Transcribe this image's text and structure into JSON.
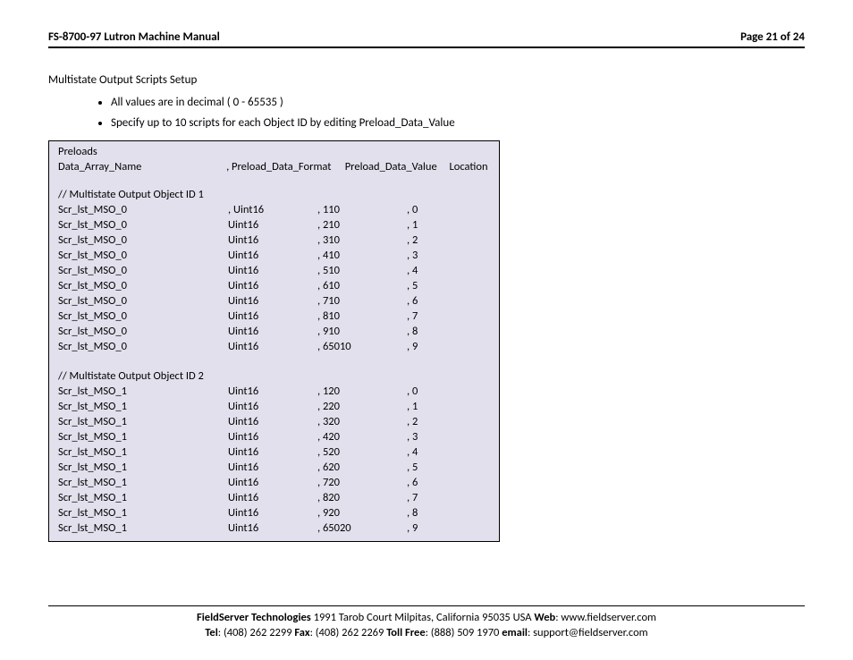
{
  "header": {
    "title": "FS-8700-97 Lutron Machine Manual",
    "page_label": "Page 21 of 24"
  },
  "section": {
    "title": "Multistate Output Scripts Setup",
    "bullets": [
      "All values are in decimal ( 0 - 65535 )",
      "Specify up to 10 scripts for each Object ID by editing Preload_Data_Value"
    ]
  },
  "preloads": {
    "box_title": "Preloads",
    "headers": {
      "c1": "Data_Array_Name",
      "c2": ", Preload_Data_Format",
      "c3": "Preload_Data_Value",
      "c4": "Location"
    },
    "groups": [
      {
        "label": "// Multistate Output Object ID 1",
        "rows": [
          {
            "name": "Scr_lst_MSO_0",
            "fmt": ", Uint16",
            "val": ", 110",
            "loc": ", 0"
          },
          {
            "name": "Scr_lst_MSO_0",
            "fmt": "Uint16",
            "val": ", 210",
            "loc": ", 1"
          },
          {
            "name": "Scr_lst_MSO_0",
            "fmt": "Uint16",
            "val": ", 310",
            "loc": ", 2"
          },
          {
            "name": "Scr_lst_MSO_0",
            "fmt": "Uint16",
            "val": ", 410",
            "loc": ", 3"
          },
          {
            "name": "Scr_lst_MSO_0",
            "fmt": "Uint16",
            "val": ", 510",
            "loc": ", 4"
          },
          {
            "name": "Scr_lst_MSO_0",
            "fmt": "Uint16",
            "val": ", 610",
            "loc": ", 5"
          },
          {
            "name": "Scr_lst_MSO_0",
            "fmt": "Uint16",
            "val": ", 710",
            "loc": ", 6"
          },
          {
            "name": "Scr_lst_MSO_0",
            "fmt": "Uint16",
            "val": ", 810",
            "loc": ", 7"
          },
          {
            "name": "Scr_lst_MSO_0",
            "fmt": "Uint16",
            "val": ", 910",
            "loc": ", 8"
          },
          {
            "name": "Scr_lst_MSO_0",
            "fmt": "Uint16",
            "val": ", 65010",
            "loc": ", 9"
          }
        ]
      },
      {
        "label": "// Multistate Output Object ID 2",
        "rows": [
          {
            "name": "Scr_lst_MSO_1",
            "fmt": "Uint16",
            "val": ", 120",
            "loc": ", 0"
          },
          {
            "name": "Scr_lst_MSO_1",
            "fmt": "Uint16",
            "val": ", 220",
            "loc": ", 1"
          },
          {
            "name": "Scr_lst_MSO_1",
            "fmt": "Uint16",
            "val": ", 320",
            "loc": ", 2"
          },
          {
            "name": "Scr_lst_MSO_1",
            "fmt": "Uint16",
            "val": ", 420",
            "loc": ", 3"
          },
          {
            "name": "Scr_lst_MSO_1",
            "fmt": "Uint16",
            "val": ", 520",
            "loc": ", 4"
          },
          {
            "name": "Scr_lst_MSO_1",
            "fmt": "Uint16",
            "val": ", 620",
            "loc": ", 5"
          },
          {
            "name": "Scr_lst_MSO_1",
            "fmt": "Uint16",
            "val": ", 720",
            "loc": ", 6"
          },
          {
            "name": "Scr_lst_MSO_1",
            "fmt": "Uint16",
            "val": ", 820",
            "loc": ", 7"
          },
          {
            "name": "Scr_lst_MSO_1",
            "fmt": "Uint16",
            "val": ", 920",
            "loc": ", 8"
          },
          {
            "name": "Scr_lst_MSO_1",
            "fmt": "Uint16",
            "val": ", 65020",
            "loc": ", 9"
          }
        ]
      }
    ]
  },
  "footer": {
    "company_bold": "FieldServer Technologies",
    "address": " 1991 Tarob Court Milpitas, California 95035 USA   ",
    "web_label": "Web",
    "web_value": ": www.fieldserver.com",
    "tel_label": "Tel",
    "tel_value": ": (408) 262 2299   ",
    "fax_label": "Fax",
    "fax_value": ": (408) 262 2269   ",
    "tollfree_label": "Toll Free",
    "tollfree_value": ": (888) 509 1970   ",
    "email_label": "email",
    "email_value": ": support@fieldserver.com"
  },
  "style": {
    "box_background": "#e2e0ec",
    "box_border": "#000000",
    "page_background": "#ffffff",
    "text_color": "#000000",
    "header_rule_color": "#000000",
    "body_font_size_pt": 10
  }
}
